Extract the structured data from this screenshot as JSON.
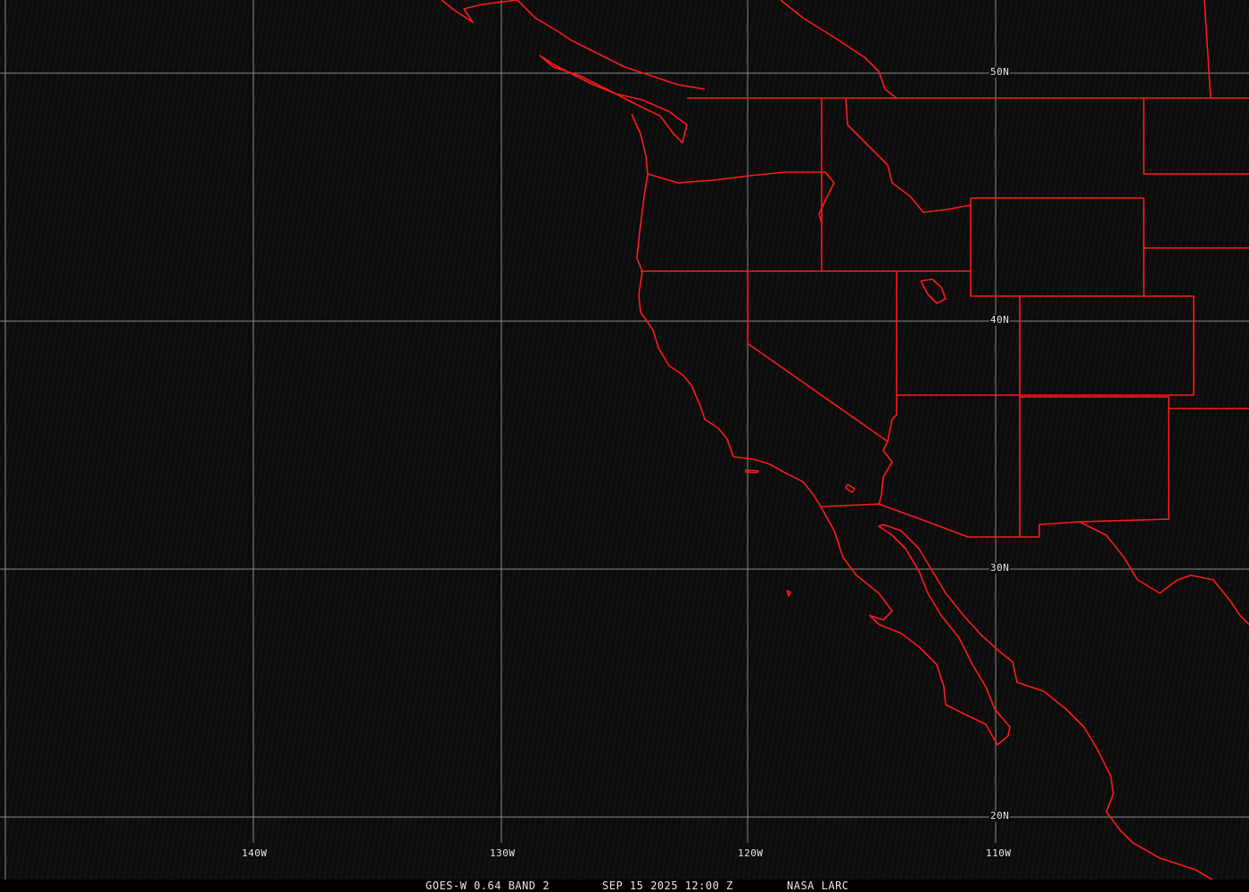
{
  "map": {
    "type": "satellite-imagery",
    "background": "#0c0c0c",
    "boundary_color": "#ff1a1a",
    "grid_color": "#8a8a8a",
    "latitude_labels": [
      "50N",
      "40N",
      "30N",
      "20N"
    ],
    "longitude_labels": [
      "140W",
      "130W",
      "120W",
      "110W"
    ]
  },
  "caption": {
    "product": "GOES-W 0.64 BAND 2",
    "datetime": "SEP 15 2025 12:00 Z",
    "source": "NASA LARC"
  }
}
